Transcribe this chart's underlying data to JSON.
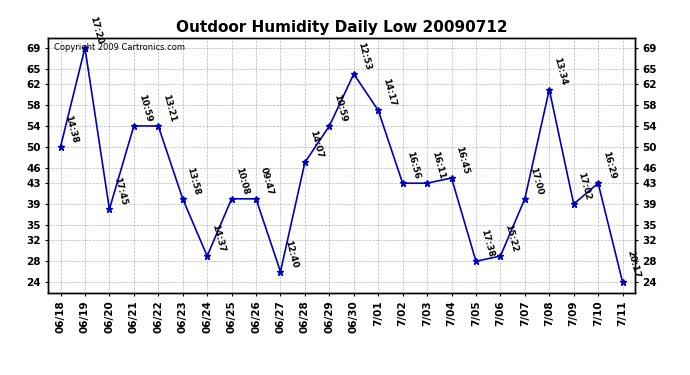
{
  "title": "Outdoor Humidity Daily Low 20090712",
  "copyright": "Copyright 2009 Cartronics.com",
  "x_labels": [
    "06/18",
    "06/19",
    "06/20",
    "06/21",
    "06/22",
    "06/23",
    "06/24",
    "06/25",
    "06/26",
    "06/27",
    "06/28",
    "06/29",
    "06/30",
    "7/01",
    "7/02",
    "7/03",
    "7/04",
    "7/05",
    "7/06",
    "7/07",
    "7/08",
    "7/09",
    "7/10",
    "7/11"
  ],
  "y_values": [
    50,
    69,
    38,
    54,
    54,
    40,
    29,
    40,
    40,
    26,
    47,
    54,
    64,
    57,
    43,
    43,
    44,
    28,
    29,
    40,
    61,
    39,
    43,
    24
  ],
  "annotations": [
    "14:38",
    "17:20",
    "17:45",
    "10:59",
    "13:21",
    "13:58",
    "14:37",
    "10:08",
    "09:47",
    "12:40",
    "14:07",
    "10:59",
    "12:53",
    "14:17",
    "16:56",
    "16:11",
    "16:45",
    "17:38",
    "15:22",
    "17:00",
    "13:34",
    "17:02",
    "16:29",
    "20:17"
  ],
  "line_color": "#0000bb",
  "marker_color": "#0000bb",
  "bg_color": "#ffffff",
  "grid_color": "#999999",
  "y_ticks": [
    24,
    28,
    32,
    35,
    39,
    43,
    46,
    50,
    54,
    58,
    62,
    65,
    69
  ],
  "ylim": [
    22,
    71
  ],
  "title_fontsize": 11,
  "annot_fontsize": 6.5,
  "tick_fontsize": 7.5
}
